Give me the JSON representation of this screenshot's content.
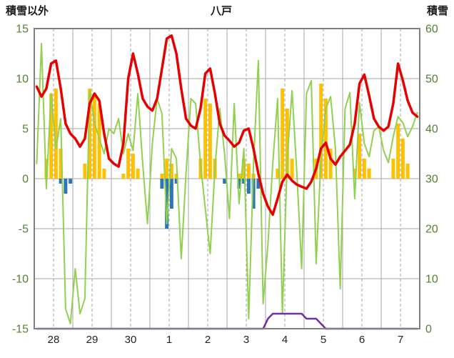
{
  "chart_data": {
    "type": "line",
    "title": "八戸",
    "legend": "none",
    "grid": true,
    "colors": {
      "grid": "#a6a6a6",
      "frame": "#808080",
      "axis_number": "#548235",
      "x_number": "#1f1f1f",
      "red_line": "#e60000",
      "green_line": "#92d050",
      "orange_bar": "#ffc000",
      "blue_bar": "#2e75b6",
      "purple_line": "#7030a0"
    },
    "left_axis": {
      "label": "積雪以外",
      "min": -15,
      "max": 15,
      "tick_step": 5,
      "ticks": [
        15,
        10,
        5,
        0,
        -5,
        -10,
        -15
      ]
    },
    "right_axis": {
      "label": "積雪",
      "min": 0,
      "max": 60,
      "tick_step": 10,
      "ticks": [
        60,
        50,
        40,
        30,
        20,
        10,
        0
      ]
    },
    "x_axis": {
      "labels": [
        "28",
        "29",
        "30",
        "1",
        "2",
        "3",
        "4",
        "5",
        "6",
        "7"
      ],
      "points_per_day": 8,
      "vertical_solid_gridlines": "day boundaries",
      "vertical_dashed_gridlines": "midday"
    },
    "series": [
      {
        "name": "orange-bars",
        "type": "bar",
        "axis": "left",
        "color": "#ffc000",
        "values": [
          0,
          0,
          2.0,
          8.5,
          9.0,
          3.0,
          0,
          0,
          0,
          0,
          1.5,
          9.0,
          8.5,
          7.5,
          1.0,
          0,
          0,
          0,
          0.5,
          3.0,
          2.5,
          1.0,
          0,
          0,
          0,
          0,
          0.5,
          2.0,
          1.5,
          0.5,
          0,
          0,
          0,
          0,
          2.0,
          8.0,
          7.5,
          2.0,
          0,
          0,
          0,
          0,
          0.5,
          2.0,
          1.5,
          0.5,
          0,
          0,
          0,
          0,
          1.0,
          9.0,
          7.0,
          2.0,
          0,
          0,
          0,
          0,
          2.0,
          9.5,
          8.0,
          3.0,
          0,
          0,
          0,
          0,
          1.0,
          4.5,
          2.0,
          1.0,
          0,
          0,
          0,
          0,
          2.0,
          5.5,
          4.0,
          1.5,
          0,
          0
        ]
      },
      {
        "name": "blue-bars",
        "type": "bar",
        "axis": "left",
        "color": "#2e75b6",
        "values": [
          0,
          0,
          0,
          0,
          0,
          -0.5,
          -1.5,
          -0.5,
          0,
          0,
          0,
          0,
          0,
          0,
          0,
          0,
          0,
          0,
          0,
          0,
          0,
          0,
          0,
          0,
          0,
          0,
          -1.0,
          -5.0,
          -3.0,
          -0.5,
          0,
          0,
          0,
          0,
          0,
          0,
          0,
          0,
          0,
          -0.5,
          0,
          0,
          -1.0,
          -0.5,
          -1.5,
          -3.0,
          -1.0,
          0,
          0,
          0,
          0,
          0,
          0,
          0,
          0,
          0,
          0,
          0,
          0,
          0,
          0,
          0,
          0,
          0,
          0,
          0,
          0,
          0,
          0,
          0,
          0,
          0,
          0,
          0,
          0,
          0,
          0,
          0,
          0,
          0
        ]
      },
      {
        "name": "green-line",
        "type": "line",
        "axis": "left",
        "color": "#92d050",
        "width": 2,
        "values": [
          1.5,
          13.5,
          -1.0,
          8.5,
          3.0,
          6.0,
          -13.0,
          -14.5,
          -9.0,
          -13.5,
          -12.0,
          8.8,
          5.5,
          4.0,
          2.5,
          5.0,
          4.5,
          6.0,
          2.5,
          4.5,
          2.8,
          8.5,
          1.5,
          -4.5,
          3.5,
          8.0,
          6.5,
          -4.5,
          3.0,
          2.0,
          -8.0,
          0.5,
          8.0,
          7.5,
          1.5,
          -3.0,
          -7.5,
          1.0,
          7.0,
          2.5,
          -4.0,
          7.5,
          -2.5,
          3.0,
          -14.0,
          1.5,
          11.8,
          -12.5,
          -6.5,
          1.5,
          8.0,
          -13.5,
          2.0,
          8.8,
          0.5,
          -9.0,
          8.5,
          9.8,
          -8.5,
          2.0,
          7.0,
          8.2,
          3.0,
          -11.0,
          7.0,
          8.6,
          -2.0,
          7.6,
          3.5,
          2.2,
          4.8,
          5.2,
          2.8,
          1.6,
          4.2,
          6.2,
          5.6,
          4.2,
          5.2,
          6.6
        ]
      },
      {
        "name": "red-line",
        "type": "line",
        "axis": "left",
        "color": "#e60000",
        "width": 3.5,
        "values": [
          9.2,
          8.2,
          9.0,
          11.5,
          11.8,
          9.0,
          5.5,
          4.5,
          4.0,
          3.2,
          4.0,
          7.5,
          8.5,
          7.8,
          4.5,
          2.0,
          1.5,
          1.2,
          3.5,
          10.0,
          12.5,
          10.5,
          8.0,
          7.2,
          6.8,
          8.0,
          11.0,
          14.0,
          14.3,
          12.5,
          9.0,
          6.0,
          5.3,
          5.0,
          7.0,
          10.5,
          11.0,
          8.5,
          5.5,
          4.3,
          3.8,
          3.2,
          3.6,
          4.8,
          5.0,
          3.0,
          0.5,
          -1.5,
          -2.8,
          -3.6,
          -2.0,
          -0.3,
          0.4,
          -0.2,
          -0.6,
          -0.8,
          -1.0,
          -0.3,
          1.0,
          3.0,
          3.6,
          2.0,
          1.4,
          2.2,
          2.8,
          3.4,
          5.5,
          9.5,
          10.4,
          8.3,
          6.0,
          5.2,
          4.8,
          5.2,
          7.5,
          11.5,
          9.8,
          7.8,
          6.6,
          6.2
        ]
      },
      {
        "name": "purple-line-snow",
        "type": "line",
        "axis": "right",
        "color": "#7030a0",
        "width": 2.5,
        "values": [
          0,
          0,
          0,
          0,
          0,
          0,
          0,
          0,
          0,
          0,
          0,
          0,
          0,
          0,
          0,
          0,
          0,
          0,
          0,
          0,
          0,
          0,
          0,
          0,
          0,
          0,
          0,
          0,
          0,
          0,
          0,
          0,
          0,
          0,
          0,
          0,
          0,
          0,
          0,
          0,
          0,
          0,
          0,
          0,
          0,
          0,
          0,
          0,
          2,
          3,
          3,
          3,
          3,
          3,
          3,
          3,
          2,
          2,
          2,
          1,
          0,
          0,
          0,
          0,
          0,
          0,
          0,
          0,
          0,
          0,
          0,
          0,
          0,
          0,
          0,
          0,
          0,
          0,
          0,
          0
        ]
      }
    ]
  }
}
